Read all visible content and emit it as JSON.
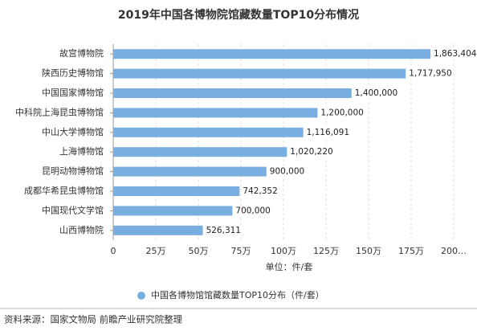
{
  "chart_data": {
    "type": "hbar",
    "title": "2019年中国各博物院馆藏数量TOP10分布情况",
    "categories": [
      "故宫博物院",
      "陕西历史博物馆",
      "中国国家博物馆",
      "中科院上海昆虫博物馆",
      "中山大学博物馆",
      "上海博物馆",
      "昆明动物博物馆",
      "成都华希昆虫博物馆",
      "中国现代文学馆",
      "山西博物院"
    ],
    "values": [
      1863404,
      1717950,
      1400000,
      1200000,
      1116091,
      1020220,
      900000,
      742352,
      700000,
      526311
    ],
    "value_labels": [
      "1,863,404",
      "1,717,950",
      "1,400,000",
      "1,200,000",
      "1,116,091",
      "1,020,220",
      "900,000",
      "742,352",
      "700,000",
      "526,311"
    ],
    "color": "#79aee0",
    "xlim": [
      0,
      2000000
    ],
    "xticks": [
      0,
      {
        "value": 250000,
        "label": "25万"
      },
      {
        "value": 500000,
        "label": "50万"
      },
      {
        "value": 750000,
        "label": "75万"
      },
      {
        "value": 1000000,
        "label": "100万"
      },
      {
        "value": 1250000,
        "label": "125万"
      },
      {
        "value": 1500000,
        "label": "150万"
      },
      {
        "value": 1750000,
        "label": "175万"
      },
      {
        "value": 2000000,
        "label": "200…"
      }
    ],
    "grid": true,
    "xlabel": "单位：件/套",
    "legend": "中国各博物馆馆藏数量TOP10分布（件/套）",
    "source": "资料来源：国家文物局 前瞻产业研究院整理"
  }
}
